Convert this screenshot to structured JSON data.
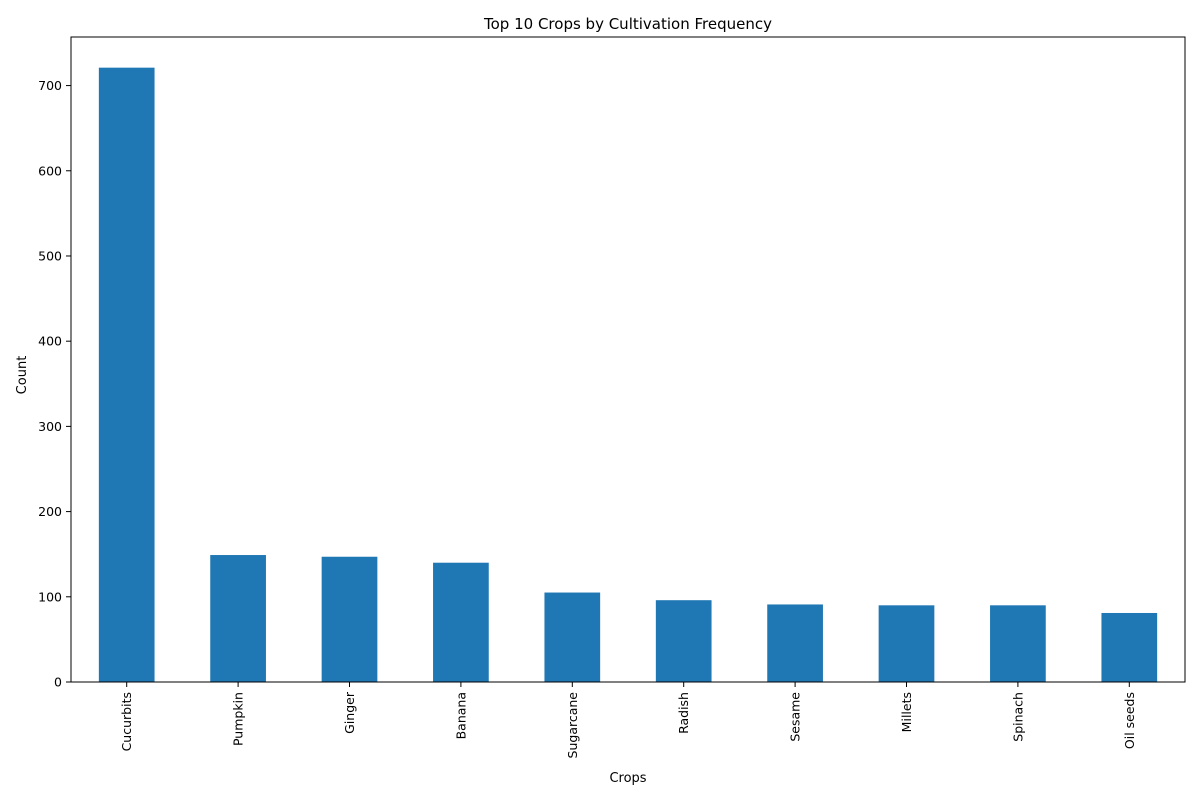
{
  "chart_data": {
    "type": "bar",
    "title": "Top 10 Crops by Cultivation Frequency",
    "xlabel": "Crops",
    "ylabel": "Count",
    "categories": [
      "Cucurbits",
      "Pumpkin",
      "Ginger",
      "Banana",
      "Sugarcane",
      "Radish",
      "Sesame",
      "Millets",
      "Spinach",
      "Oil seeds"
    ],
    "values": [
      721,
      149,
      147,
      140,
      105,
      96,
      91,
      90,
      90,
      81
    ],
    "ylim": [
      0,
      757
    ],
    "yticks": [
      0,
      100,
      200,
      300,
      400,
      500,
      600,
      700
    ],
    "grid": false,
    "legend": "none",
    "bar_color": "#1f77b4"
  }
}
